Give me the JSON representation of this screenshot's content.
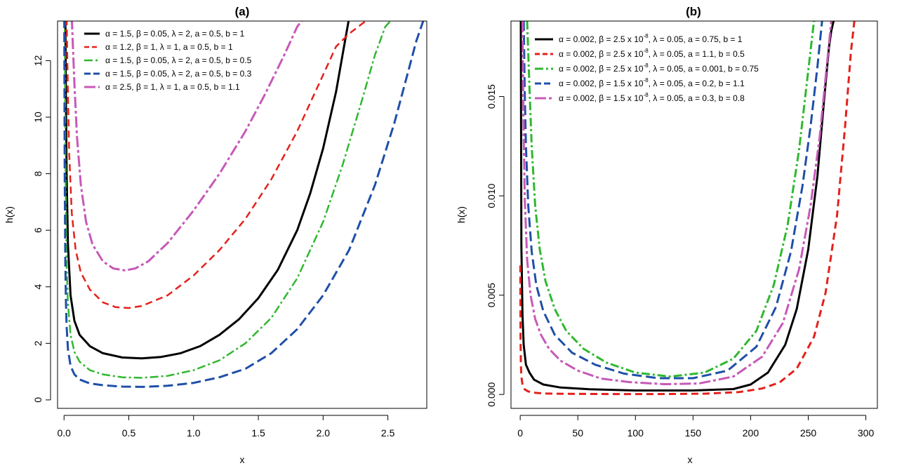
{
  "chart_data": [
    {
      "type": "line",
      "title": "(a)",
      "xlabel": "x",
      "ylabel": "h(x)",
      "xlim": [
        -0.05,
        2.8
      ],
      "ylim": [
        -0.3,
        13.4
      ],
      "xticks": [
        0.0,
        0.5,
        1.0,
        1.5,
        2.0,
        2.5
      ],
      "xtick_labels": [
        "0.0",
        "0.5",
        "1.0",
        "1.5",
        "2.0",
        "2.5"
      ],
      "yticks": [
        0,
        2,
        4,
        6,
        8,
        10,
        12
      ],
      "ytick_labels": [
        "0",
        "2",
        "4",
        "6",
        "8",
        "10",
        "12"
      ],
      "legend_position": "top-left",
      "series": [
        {
          "name": "α = 1.5, β = 0.05, λ = 2, a = 0.5, b = 1",
          "legend_parts": [
            "α = 1.5, β = 0.05, λ = 2, a = 0.5, b = 1"
          ],
          "color": "#000000",
          "dash": "solid",
          "width": 3,
          "x": [
            0.01,
            0.015,
            0.02,
            0.03,
            0.05,
            0.08,
            0.12,
            0.2,
            0.3,
            0.45,
            0.6,
            0.75,
            0.9,
            1.05,
            1.2,
            1.35,
            1.5,
            1.65,
            1.8,
            1.9,
            2.0,
            2.1,
            2.15,
            2.2
          ],
          "y": [
            13.5,
            10.5,
            8.0,
            5.5,
            3.7,
            2.8,
            2.3,
            1.9,
            1.65,
            1.5,
            1.47,
            1.52,
            1.65,
            1.9,
            2.3,
            2.85,
            3.6,
            4.6,
            6.0,
            7.3,
            8.9,
            10.9,
            12.2,
            13.5
          ]
        },
        {
          "name": "α = 1.2, β = 1, λ = 1, a = 0.5, b = 1",
          "legend_parts": [
            "α = 1.2, β = 1, λ = 1, a = 0.5, b = 1"
          ],
          "color": "#e4211c",
          "dash": "10 6",
          "width": 2.5,
          "x": [
            0.02,
            0.03,
            0.04,
            0.06,
            0.09,
            0.13,
            0.2,
            0.3,
            0.4,
            0.5,
            0.6,
            0.8,
            1.0,
            1.2,
            1.4,
            1.6,
            1.8,
            1.9,
            2.0,
            2.1,
            2.2,
            2.3,
            2.36
          ],
          "y": [
            13.5,
            10.8,
            8.7,
            6.6,
            5.3,
            4.5,
            3.9,
            3.45,
            3.28,
            3.25,
            3.32,
            3.7,
            4.4,
            5.3,
            6.4,
            7.8,
            9.5,
            10.5,
            11.5,
            12.5,
            12.95,
            13.3,
            13.5
          ]
        },
        {
          "name": "α = 1.5, β = 0.05, λ = 2, a = 0.5, b = 0.5",
          "legend_parts": [
            "α = 1.5, β = 0.05, λ = 2, a = 0.5, b = 0.5"
          ],
          "color": "#2fb82f",
          "dash": "12 4 3 4",
          "width": 2.5,
          "x": [
            0.005,
            0.01,
            0.015,
            0.02,
            0.03,
            0.05,
            0.08,
            0.12,
            0.2,
            0.3,
            0.45,
            0.6,
            0.8,
            1.0,
            1.2,
            1.4,
            1.6,
            1.8,
            2.0,
            2.15,
            2.3,
            2.4,
            2.48,
            2.54
          ],
          "y": [
            13.5,
            9.0,
            6.3,
            4.8,
            3.4,
            2.3,
            1.7,
            1.35,
            1.05,
            0.9,
            0.8,
            0.78,
            0.85,
            1.05,
            1.4,
            2.0,
            2.9,
            4.3,
            6.3,
            8.3,
            10.6,
            12.2,
            13.2,
            13.5
          ]
        },
        {
          "name": "α = 1.5, β = 0.05, λ = 2, a = 0.5, b = 0.3",
          "legend_parts": [
            "α = 1.5, β = 0.05, λ = 2, a = 0.5, b = 0.3"
          ],
          "color": "#1f4fa8",
          "dash": "14 6",
          "width": 3,
          "x": [
            0.002,
            0.005,
            0.01,
            0.015,
            0.02,
            0.03,
            0.05,
            0.08,
            0.12,
            0.2,
            0.3,
            0.45,
            0.6,
            0.8,
            1.0,
            1.2,
            1.4,
            1.6,
            1.8,
            2.0,
            2.2,
            2.4,
            2.55,
            2.65,
            2.72,
            2.78
          ],
          "y": [
            13.5,
            8.0,
            4.8,
            3.4,
            2.6,
            1.8,
            1.2,
            0.9,
            0.72,
            0.58,
            0.52,
            0.47,
            0.46,
            0.5,
            0.6,
            0.8,
            1.1,
            1.65,
            2.5,
            3.7,
            5.3,
            7.6,
            9.8,
            11.5,
            12.7,
            13.5
          ]
        },
        {
          "name": "α = 2.5, β = 1, λ = 1, a = 0.5, b = 1.1",
          "legend_parts": [
            "α = 2.5, β = 1, λ = 1, a = 0.5, b = 1.1"
          ],
          "color": "#c758b8",
          "dash": "16 4 4 4",
          "width": 3,
          "x": [
            0.06,
            0.08,
            0.1,
            0.13,
            0.17,
            0.22,
            0.3,
            0.38,
            0.47,
            0.55,
            0.65,
            0.8,
            1.0,
            1.2,
            1.4,
            1.55,
            1.7,
            1.8,
            1.85
          ],
          "y": [
            13.5,
            11.2,
            9.3,
            7.6,
            6.3,
            5.5,
            4.9,
            4.65,
            4.58,
            4.65,
            4.9,
            5.55,
            6.7,
            8.0,
            9.5,
            10.8,
            12.2,
            13.2,
            13.5
          ]
        }
      ]
    },
    {
      "type": "line",
      "title": "(b)",
      "xlabel": "x",
      "ylabel": "h(x)",
      "xlim": [
        -8,
        310
      ],
      "ylim": [
        -0.0007,
        0.0188
      ],
      "xticks": [
        0,
        50,
        100,
        150,
        200,
        250,
        300
      ],
      "xtick_labels": [
        "0",
        "50",
        "100",
        "150",
        "200",
        "250",
        "300"
      ],
      "yticks": [
        0.0,
        0.005,
        0.01,
        0.015
      ],
      "ytick_labels": [
        "0.000",
        "0.005",
        "0.010",
        "0.015"
      ],
      "legend_position": "top-left",
      "series": [
        {
          "name": "α = 0.002, β = 2.5 x 10^-8, λ = 0.05, a = 0.75, b = 1",
          "legend_parts": [
            "α = 0.002, β = 2.5 x 10",
            "-8",
            ", λ = 0.05, a = 0.75, b = 1"
          ],
          "color": "#000000",
          "dash": "solid",
          "width": 3,
          "x": [
            0.5,
            1,
            2,
            3,
            5,
            8,
            12,
            20,
            35,
            60,
            100,
            150,
            185,
            200,
            215,
            230,
            240,
            250,
            258,
            264,
            268,
            270,
            272
          ],
          "y": [
            0.0188,
            0.0075,
            0.004,
            0.0025,
            0.0015,
            0.0011,
            0.00075,
            0.0005,
            0.00035,
            0.00026,
            0.0002,
            0.0002,
            0.00027,
            0.0005,
            0.0011,
            0.0025,
            0.0043,
            0.0073,
            0.011,
            0.015,
            0.0175,
            0.0183,
            0.0188
          ]
        },
        {
          "name": "α = 0.002, β = 2.5 x 10^-8, λ = 0.05, a = 1.1, b = 0.5",
          "legend_parts": [
            "α = 0.002, β = 2.5 x 10",
            "-8",
            ", λ = 0.05, a = 1.1, b = 0.5"
          ],
          "color": "#e4211c",
          "dash": "10 6",
          "width": 3,
          "x": [
            0.1,
            0.3,
            0.6,
            1,
            2,
            4,
            7,
            12,
            20,
            40,
            80,
            120,
            160,
            190,
            210,
            225,
            240,
            255,
            265,
            275,
            282,
            287,
            290
          ],
          "y": [
            0.0065,
            0.003,
            0.0015,
            0.0009,
            0.0005,
            0.00025,
            0.00015,
            9e-05,
            5e-05,
            3e-05,
            2e-05,
            2e-05,
            4e-05,
            0.00012,
            0.0003,
            0.0006,
            0.0013,
            0.0029,
            0.0051,
            0.009,
            0.0135,
            0.0172,
            0.0188
          ]
        },
        {
          "name": "α = 0.002, β = 2.5 x 10^-8, λ = 0.05, a = 0.001, b = 0.75",
          "legend_parts": [
            "α = 0.002, β = 2.5 x 10",
            "-8",
            ", λ = 0.05, a = 0.001, b = 0.75"
          ],
          "color": "#2fb82f",
          "dash": "12 4 3 4",
          "width": 3,
          "x": [
            6,
            8,
            10,
            13,
            17,
            22,
            30,
            40,
            55,
            75,
            100,
            130,
            160,
            185,
            205,
            220,
            232,
            242,
            250,
            255
          ],
          "y": [
            0.0188,
            0.0155,
            0.0125,
            0.0095,
            0.0073,
            0.0057,
            0.0043,
            0.0032,
            0.0023,
            0.0016,
            0.0011,
            0.0009,
            0.0011,
            0.0018,
            0.0032,
            0.0055,
            0.0085,
            0.0123,
            0.0163,
            0.0188
          ]
        },
        {
          "name": "α = 0.002, β = 1.5 x 10^-8, λ = 0.05, a = 0.2, b = 1.1",
          "legend_parts": [
            "α = 0.002, β = 1.5 x 10",
            "-8",
            ", λ = 0.05, a = 0.2, b = 1.1"
          ],
          "color": "#1f4fa8",
          "dash": "14 6",
          "width": 3,
          "x": [
            3,
            4,
            5,
            7,
            10,
            14,
            20,
            30,
            45,
            65,
            90,
            120,
            150,
            180,
            205,
            222,
            235,
            245,
            252,
            258,
            262
          ],
          "y": [
            0.0188,
            0.015,
            0.0125,
            0.0095,
            0.0072,
            0.0055,
            0.0042,
            0.003,
            0.0021,
            0.0015,
            0.00105,
            0.00082,
            0.00082,
            0.0012,
            0.0024,
            0.0044,
            0.0072,
            0.0105,
            0.0135,
            0.0165,
            0.0188
          ]
        },
        {
          "name": "α = 0.002, β = 1.5 x 10^-8, λ = 0.05, a = 0.3, b = 0.8",
          "legend_parts": [
            "α = 0.002, β = 1.5 x 10",
            "-8",
            ", λ = 0.05, a = 0.3, b = 0.8"
          ],
          "color": "#c758b8",
          "dash": "16 4 4 4",
          "width": 3,
          "x": [
            2,
            3,
            4,
            6,
            9,
            13,
            18,
            25,
            35,
            50,
            70,
            95,
            125,
            155,
            185,
            210,
            228,
            242,
            252,
            260,
            266,
            270
          ],
          "y": [
            0.0188,
            0.013,
            0.0098,
            0.0068,
            0.005,
            0.0038,
            0.003,
            0.0023,
            0.0017,
            0.0012,
            0.0008,
            0.00062,
            0.00052,
            0.00055,
            0.0009,
            0.0019,
            0.0036,
            0.0063,
            0.0095,
            0.013,
            0.0165,
            0.0188
          ]
        }
      ]
    }
  ]
}
